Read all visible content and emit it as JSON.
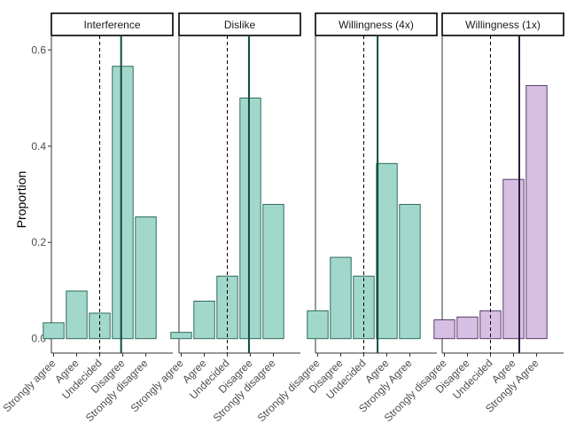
{
  "colors": {
    "bar_fill_green": "#a2d8cc",
    "bar_stroke_green": "#1d5c4b",
    "mean_line_green": "#0e4d3c",
    "bar_fill_purple": "#d6bfe2",
    "bar_stroke_purple": "#4a2a5a",
    "mean_line_purple": "#2e1a3c",
    "midline": "#000000"
  },
  "chart_data": {
    "type": "bar",
    "ylabel": "Proportion",
    "xlabel": "",
    "ylim": [
      -0.03,
      0.63
    ],
    "yticks": [
      {
        "value": 0.0,
        "label": "0.0"
      },
      {
        "value": 0.2,
        "label": "0.2"
      },
      {
        "value": 0.4,
        "label": "0.4"
      },
      {
        "value": 0.6,
        "label": "0.6"
      }
    ],
    "grid": false,
    "panels": [
      {
        "title": "Interference",
        "color": "green",
        "categories": [
          "Strongly agree",
          "Agree",
          "Undecided",
          "Disagree",
          "Strongly disagree"
        ],
        "values": [
          0.033,
          0.099,
          0.053,
          0.566,
          0.253
        ],
        "midline": 3,
        "mean": 3.93
      },
      {
        "title": "Dislike",
        "color": "green",
        "categories": [
          "Strongly agree",
          "Agree",
          "Undecided",
          "Disagree",
          "Strongly disagree"
        ],
        "values": [
          0.013,
          0.078,
          0.13,
          0.5,
          0.279
        ],
        "midline": 3,
        "mean": 3.94
      },
      {
        "title": "Willingness (4x)",
        "color": "green",
        "categories": [
          "Strongly disagree",
          "Disagree",
          "Undecided",
          "Agree",
          "Strongly Agree"
        ],
        "values": [
          0.058,
          0.169,
          0.13,
          0.364,
          0.279
        ],
        "midline": 3,
        "mean": 3.6
      },
      {
        "title": "Willingness (1x)",
        "color": "purple",
        "categories": [
          "Strongly disagree",
          "Disagree",
          "Undecided",
          "Agree",
          "Strongly Agree"
        ],
        "values": [
          0.039,
          0.045,
          0.058,
          0.331,
          0.526
        ],
        "midline": 3,
        "mean": 4.25
      }
    ]
  }
}
